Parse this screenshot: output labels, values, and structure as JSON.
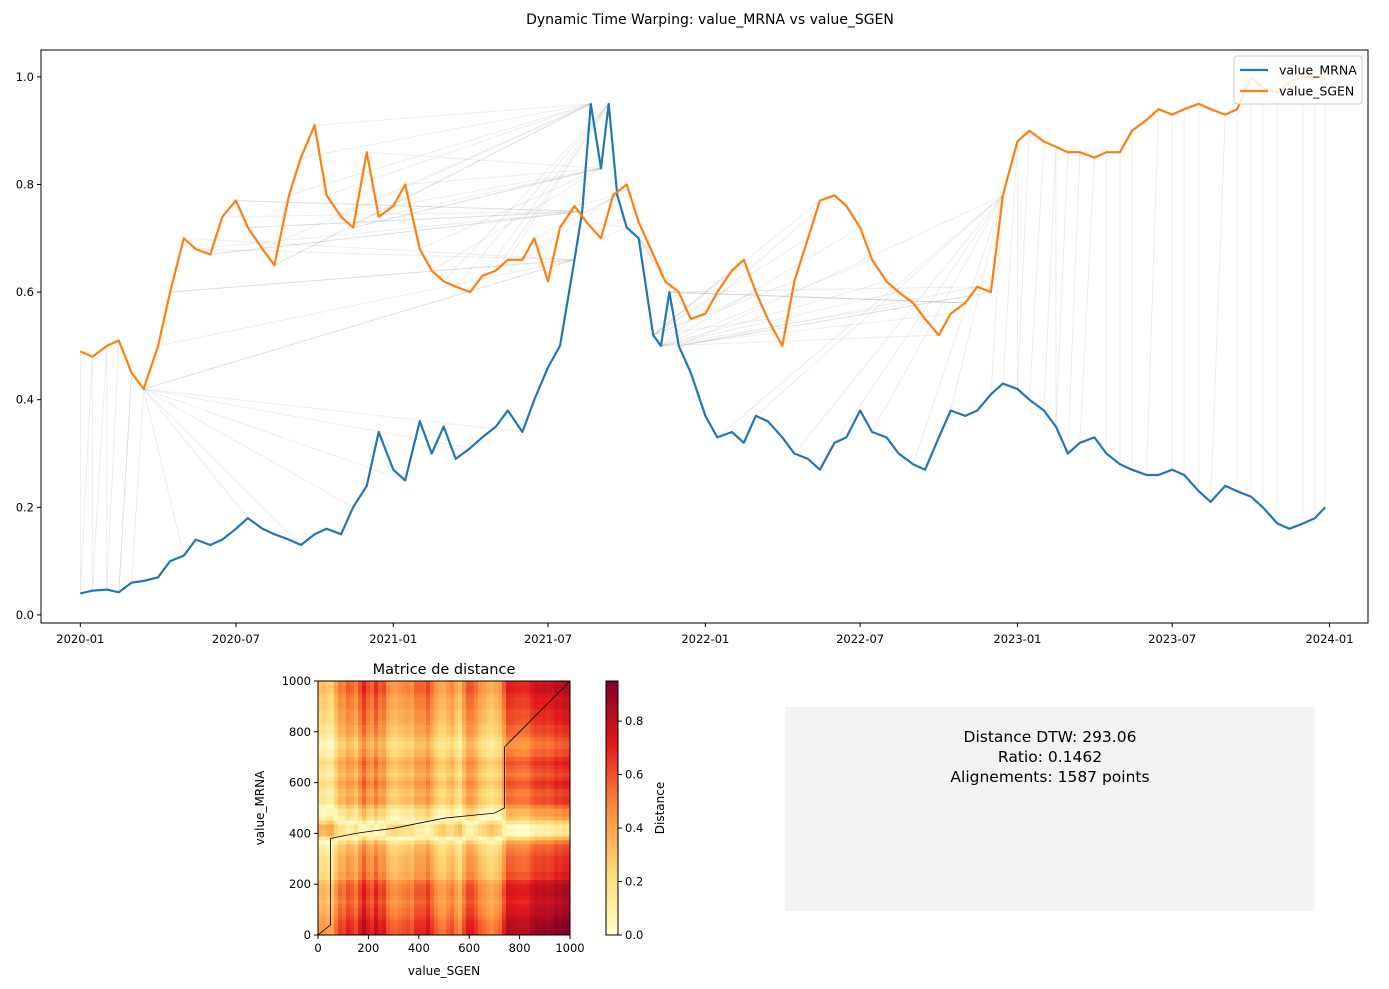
{
  "figure": {
    "title": "Dynamic Time Warping: value_MRNA vs value_SGEN"
  },
  "chart_data": [
    {
      "type": "line",
      "x_kind": "date",
      "x_ticks": [
        "2020-01",
        "2020-07",
        "2021-01",
        "2021-07",
        "2022-01",
        "2022-07",
        "2023-01",
        "2023-07",
        "2024-01"
      ],
      "y_ticks": [
        "0.0",
        "0.2",
        "0.4",
        "0.6",
        "0.8",
        "1.0"
      ],
      "xlim": [
        "2019-11-16",
        "2024-02-15"
      ],
      "ylim": [
        -0.015,
        1.05
      ],
      "legend": {
        "placement": "top-right"
      },
      "series": [
        {
          "name": "value_MRNA",
          "color": "#1f77b4",
          "x": [
            "2020-01-01",
            "2020-01-15",
            "2020-02-01",
            "2020-02-15",
            "2020-03-01",
            "2020-03-15",
            "2020-04-01",
            "2020-04-15",
            "2020-05-01",
            "2020-05-15",
            "2020-06-01",
            "2020-06-15",
            "2020-07-01",
            "2020-07-15",
            "2020-08-01",
            "2020-08-15",
            "2020-09-01",
            "2020-09-15",
            "2020-10-01",
            "2020-10-15",
            "2020-11-01",
            "2020-11-15",
            "2020-12-01",
            "2020-12-15",
            "2021-01-01",
            "2021-01-15",
            "2021-02-01",
            "2021-02-15",
            "2021-03-01",
            "2021-03-15",
            "2021-04-01",
            "2021-04-15",
            "2021-05-01",
            "2021-05-15",
            "2021-06-01",
            "2021-06-15",
            "2021-07-01",
            "2021-07-15",
            "2021-08-01",
            "2021-08-10",
            "2021-08-20",
            "2021-09-01",
            "2021-09-10",
            "2021-09-20",
            "2021-10-01",
            "2021-10-15",
            "2021-11-01",
            "2021-11-10",
            "2021-11-20",
            "2021-12-01",
            "2021-12-15",
            "2022-01-01",
            "2022-01-15",
            "2022-02-01",
            "2022-02-15",
            "2022-03-01",
            "2022-03-15",
            "2022-04-01",
            "2022-04-15",
            "2022-05-01",
            "2022-05-15",
            "2022-06-01",
            "2022-06-15",
            "2022-07-01",
            "2022-07-15",
            "2022-08-01",
            "2022-08-15",
            "2022-09-01",
            "2022-09-15",
            "2022-10-01",
            "2022-10-15",
            "2022-11-01",
            "2022-11-15",
            "2022-12-01",
            "2022-12-15",
            "2023-01-01",
            "2023-01-15",
            "2023-02-01",
            "2023-02-15",
            "2023-03-01",
            "2023-03-15",
            "2023-04-01",
            "2023-04-15",
            "2023-05-01",
            "2023-05-15",
            "2023-06-01",
            "2023-06-15",
            "2023-07-01",
            "2023-07-15",
            "2023-08-01",
            "2023-08-15",
            "2023-09-01",
            "2023-09-15",
            "2023-10-01",
            "2023-10-15",
            "2023-11-01",
            "2023-11-15",
            "2023-12-01",
            "2023-12-15",
            "2023-12-27"
          ],
          "y": [
            0.04,
            0.045,
            0.047,
            0.042,
            0.06,
            0.063,
            0.07,
            0.1,
            0.11,
            0.14,
            0.13,
            0.14,
            0.16,
            0.18,
            0.16,
            0.15,
            0.14,
            0.13,
            0.15,
            0.16,
            0.15,
            0.2,
            0.24,
            0.34,
            0.27,
            0.25,
            0.36,
            0.3,
            0.35,
            0.29,
            0.31,
            0.33,
            0.35,
            0.38,
            0.34,
            0.4,
            0.46,
            0.5,
            0.66,
            0.75,
            0.95,
            0.83,
            0.95,
            0.78,
            0.72,
            0.7,
            0.52,
            0.5,
            0.6,
            0.5,
            0.45,
            0.37,
            0.33,
            0.34,
            0.32,
            0.37,
            0.36,
            0.33,
            0.3,
            0.29,
            0.27,
            0.32,
            0.33,
            0.38,
            0.34,
            0.33,
            0.3,
            0.28,
            0.27,
            0.33,
            0.38,
            0.37,
            0.38,
            0.41,
            0.43,
            0.42,
            0.4,
            0.38,
            0.35,
            0.3,
            0.32,
            0.33,
            0.3,
            0.28,
            0.27,
            0.26,
            0.26,
            0.27,
            0.26,
            0.23,
            0.21,
            0.24,
            0.23,
            0.22,
            0.2,
            0.17,
            0.16,
            0.17,
            0.18,
            0.2
          ]
        },
        {
          "name": "value_SGEN",
          "color": "#ff7f0e",
          "x": [
            "2020-01-01",
            "2020-01-15",
            "2020-02-01",
            "2020-02-15",
            "2020-03-01",
            "2020-03-15",
            "2020-04-01",
            "2020-04-15",
            "2020-05-01",
            "2020-05-15",
            "2020-06-01",
            "2020-06-15",
            "2020-07-01",
            "2020-07-15",
            "2020-08-01",
            "2020-08-15",
            "2020-09-01",
            "2020-09-15",
            "2020-10-01",
            "2020-10-15",
            "2020-11-01",
            "2020-11-15",
            "2020-12-01",
            "2020-12-15",
            "2021-01-01",
            "2021-01-15",
            "2021-02-01",
            "2021-02-15",
            "2021-03-01",
            "2021-03-15",
            "2021-04-01",
            "2021-04-15",
            "2021-05-01",
            "2021-05-15",
            "2021-06-01",
            "2021-06-15",
            "2021-07-01",
            "2021-07-15",
            "2021-08-01",
            "2021-08-15",
            "2021-09-01",
            "2021-09-15",
            "2021-10-01",
            "2021-10-15",
            "2021-11-01",
            "2021-11-15",
            "2021-12-01",
            "2021-12-15",
            "2022-01-01",
            "2022-01-15",
            "2022-02-01",
            "2022-02-15",
            "2022-03-01",
            "2022-03-15",
            "2022-04-01",
            "2022-04-15",
            "2022-05-01",
            "2022-05-15",
            "2022-06-01",
            "2022-06-15",
            "2022-07-01",
            "2022-07-15",
            "2022-08-01",
            "2022-08-15",
            "2022-09-01",
            "2022-09-15",
            "2022-10-01",
            "2022-10-15",
            "2022-11-01",
            "2022-11-15",
            "2022-12-01",
            "2022-12-15",
            "2023-01-01",
            "2023-01-15",
            "2023-02-01",
            "2023-02-15",
            "2023-03-01",
            "2023-03-15",
            "2023-04-01",
            "2023-04-15",
            "2023-05-01",
            "2023-05-15",
            "2023-06-01",
            "2023-06-15",
            "2023-07-01",
            "2023-07-15",
            "2023-08-01",
            "2023-08-15",
            "2023-09-01",
            "2023-09-15",
            "2023-10-01",
            "2023-10-15",
            "2023-11-01",
            "2023-11-15",
            "2023-12-01",
            "2023-12-15",
            "2023-12-27"
          ],
          "y": [
            0.49,
            0.48,
            0.5,
            0.51,
            0.45,
            0.42,
            0.5,
            0.6,
            0.7,
            0.68,
            0.67,
            0.74,
            0.77,
            0.72,
            0.68,
            0.65,
            0.78,
            0.85,
            0.91,
            0.78,
            0.74,
            0.72,
            0.86,
            0.74,
            0.76,
            0.8,
            0.68,
            0.64,
            0.62,
            0.61,
            0.6,
            0.63,
            0.64,
            0.66,
            0.66,
            0.7,
            0.62,
            0.72,
            0.76,
            0.73,
            0.7,
            0.78,
            0.8,
            0.73,
            0.67,
            0.62,
            0.6,
            0.55,
            0.56,
            0.6,
            0.64,
            0.66,
            0.6,
            0.55,
            0.5,
            0.62,
            0.7,
            0.77,
            0.78,
            0.76,
            0.72,
            0.66,
            0.62,
            0.6,
            0.58,
            0.55,
            0.52,
            0.56,
            0.58,
            0.61,
            0.6,
            0.78,
            0.88,
            0.9,
            0.88,
            0.87,
            0.86,
            0.86,
            0.85,
            0.86,
            0.86,
            0.9,
            0.92,
            0.94,
            0.93,
            0.94,
            0.95,
            0.94,
            0.93,
            0.94,
            1.0,
            0.98,
            0.97,
            0.99,
            1.0,
            1.0,
            1.0
          ]
        }
      ]
    },
    {
      "type": "heatmap",
      "title": "Matrice de distance",
      "xlabel": "value_SGEN",
      "ylabel": "value_MRNA",
      "x_ticks": [
        "0",
        "200",
        "400",
        "600",
        "800",
        "1000"
      ],
      "y_ticks": [
        "0",
        "200",
        "400",
        "600",
        "800",
        "1000"
      ],
      "xlim": [
        0,
        1000
      ],
      "ylim": [
        0,
        1000
      ],
      "colormap": "YlOrRd",
      "path": [
        [
          0,
          0
        ],
        [
          50,
          40
        ],
        [
          50,
          380
        ],
        [
          100,
          390
        ],
        [
          150,
          400
        ],
        [
          220,
          410
        ],
        [
          300,
          420
        ],
        [
          400,
          440
        ],
        [
          500,
          460
        ],
        [
          600,
          470
        ],
        [
          700,
          480
        ],
        [
          740,
          500
        ],
        [
          740,
          740
        ],
        [
          800,
          800
        ],
        [
          900,
          900
        ],
        [
          1000,
          1000
        ]
      ]
    },
    {
      "type": "colorbar",
      "label": "Distance",
      "ticks": [
        "0.0",
        "0.2",
        "0.4",
        "0.6",
        "0.8"
      ],
      "range": [
        0,
        0.95
      ]
    }
  ],
  "stats": {
    "line1": "Distance DTW: 293.06",
    "line2": "Ratio: 0.1462",
    "line3": "Alignements: 1587 points"
  }
}
